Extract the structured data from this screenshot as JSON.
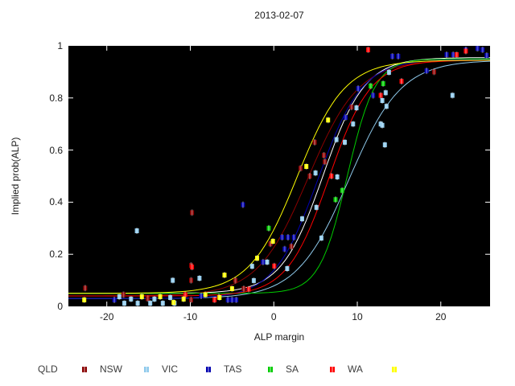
{
  "chart_data": {
    "type": "scatter",
    "title": "2013-02-07",
    "xlabel": "ALP margin",
    "ylabel": "Implied prob(ALP)",
    "xlim": [
      -24.6,
      25.9
    ],
    "ylim": [
      0,
      1
    ],
    "grid": false,
    "plot_background": "#000000",
    "tick_color": "#ffffff",
    "text_color": "#1a1a1a",
    "legend_position": "bottom",
    "x_ticks": [
      {
        "v": -20,
        "label": "-20"
      },
      {
        "v": -10,
        "label": "-10"
      },
      {
        "v": 0,
        "label": "0"
      },
      {
        "v": 10,
        "label": "10"
      },
      {
        "v": 20,
        "label": "20"
      }
    ],
    "y_ticks": [
      {
        "v": 0,
        "label": "0"
      },
      {
        "v": 0.2,
        "label": "0.2"
      },
      {
        "v": 0.4,
        "label": "0.4"
      },
      {
        "v": 0.6,
        "label": "0.6"
      },
      {
        "v": 0.8,
        "label": "0.8"
      },
      {
        "v": 1,
        "label": "1"
      }
    ],
    "overall_curve": {
      "name": "overall",
      "color": "#ffffff",
      "lo": 0.05,
      "hi": 0.955,
      "x0": 5.9,
      "k": 0.4
    },
    "series": [
      {
        "name": "QLD",
        "color": "#8b0000",
        "curve": {
          "lo": 0.04,
          "hi": 0.945,
          "x0": 4.1,
          "k": 0.33
        },
        "points": [
          [
            -22.6,
            0.07
          ],
          [
            -18,
            0.045
          ],
          [
            -15.1,
            0.03
          ],
          [
            -9.9,
            0.025
          ],
          [
            -9.9,
            0.1
          ],
          [
            -9.9,
            0.157
          ],
          [
            -9.8,
            0.36
          ],
          [
            -6.6,
            0.037
          ],
          [
            -4.6,
            0.1
          ],
          [
            -3.6,
            0.068
          ],
          [
            -0.4,
            0.24
          ],
          [
            2.1,
            0.23
          ],
          [
            3.2,
            0.53
          ],
          [
            4.3,
            0.5
          ],
          [
            4.9,
            0.63
          ],
          [
            6.0,
            0.58
          ],
          [
            6.1,
            0.555
          ],
          [
            9.3,
            0.765
          ],
          [
            19.2,
            0.9
          ]
        ]
      },
      {
        "name": "NSW",
        "color": "#8fcaec",
        "curve": {
          "lo": 0.03,
          "hi": 0.945,
          "x0": 9.0,
          "k": 0.32
        },
        "points": [
          [
            -18.5,
            0.037
          ],
          [
            -17.9,
            0.012
          ],
          [
            -17.1,
            0.028
          ],
          [
            -16.4,
            0.29
          ],
          [
            -16.3,
            0.012
          ],
          [
            -14.8,
            0.012
          ],
          [
            -14.3,
            0.028
          ],
          [
            -13.3,
            0.012
          ],
          [
            -12.4,
            0.034
          ],
          [
            -12.1,
            0.1
          ],
          [
            -11.9,
            0.012
          ],
          [
            -8.9,
            0.108
          ],
          [
            -2.6,
            0.154
          ],
          [
            -2.4,
            0.099
          ],
          [
            -0.8,
            0.17
          ],
          [
            1.6,
            0.145
          ],
          [
            3.4,
            0.336
          ],
          [
            5.0,
            0.512
          ],
          [
            5.1,
            0.38
          ],
          [
            5.7,
            0.262
          ],
          [
            7.5,
            0.64
          ],
          [
            7.6,
            0.497
          ],
          [
            8.5,
            0.63
          ],
          [
            9.5,
            0.7
          ],
          [
            9.9,
            0.762
          ],
          [
            12.8,
            0.7
          ],
          [
            13.0,
            0.695
          ],
          [
            13.0,
            0.79
          ],
          [
            13.3,
            0.62
          ],
          [
            13.4,
            0.82
          ],
          [
            13.5,
            0.768
          ],
          [
            13.8,
            0.898
          ],
          [
            21.4,
            0.81
          ]
        ]
      },
      {
        "name": "VIC",
        "color": "#0000b0",
        "curve": {
          "lo": 0.03,
          "hi": 0.948,
          "x0": 5.3,
          "k": 0.38
        },
        "points": [
          [
            -19.1,
            0.025
          ],
          [
            -8.7,
            0.04
          ],
          [
            -5.5,
            0.025
          ],
          [
            -5.0,
            0.025
          ],
          [
            -4.5,
            0.025
          ],
          [
            -3.7,
            0.39
          ],
          [
            -1.3,
            0.17
          ],
          [
            1.0,
            0.265
          ],
          [
            1.3,
            0.22
          ],
          [
            1.7,
            0.265
          ],
          [
            2.4,
            0.265
          ],
          [
            8.6,
            0.725
          ],
          [
            10.1,
            0.836
          ],
          [
            11.9,
            0.81
          ],
          [
            14.2,
            0.96
          ],
          [
            14.9,
            0.96
          ],
          [
            18.3,
            0.904
          ],
          [
            20.7,
            0.966
          ],
          [
            21.5,
            0.966
          ],
          [
            23.0,
            0.985
          ],
          [
            24.4,
            0.99
          ],
          [
            25.0,
            0.985
          ],
          [
            25.5,
            0.963
          ]
        ]
      },
      {
        "name": "TAS",
        "color": "#00cc00",
        "curve": {
          "lo": 0.05,
          "hi": 0.95,
          "x0": 8.8,
          "k": 0.6
        },
        "points": [
          [
            -0.6,
            0.3
          ],
          [
            7.4,
            0.41
          ],
          [
            8.2,
            0.445
          ],
          [
            11.6,
            0.846
          ],
          [
            13.1,
            0.855
          ]
        ]
      },
      {
        "name": "SA",
        "color": "#ff0000",
        "curve": {
          "lo": 0.04,
          "hi": 0.945,
          "x0": 6.6,
          "k": 0.4
        },
        "points": [
          [
            -10.6,
            0.045
          ],
          [
            -9.8,
            0.151
          ],
          [
            -7.1,
            0.025
          ],
          [
            -3.0,
            0.066
          ],
          [
            0.05,
            0.155
          ],
          [
            6.9,
            0.5
          ],
          [
            11.3,
            0.985
          ],
          [
            12.8,
            0.81
          ],
          [
            15.3,
            0.864
          ],
          [
            21.9,
            0.966
          ],
          [
            23.0,
            0.98
          ]
        ]
      },
      {
        "name": "WA",
        "color": "#ffff00",
        "curve": {
          "lo": 0.05,
          "hi": 0.945,
          "x0": 2.8,
          "k": 0.35
        },
        "points": [
          [
            -22.7,
            0.025
          ],
          [
            -15.8,
            0.037
          ],
          [
            -13.6,
            0.037
          ],
          [
            -12.0,
            0.015
          ],
          [
            -10.8,
            0.028
          ],
          [
            -8.2,
            0.045
          ],
          [
            -6.5,
            0.034
          ],
          [
            -5.9,
            0.12
          ],
          [
            -5.0,
            0.068
          ],
          [
            -2.0,
            0.185
          ],
          [
            -0.1,
            0.25
          ],
          [
            3.9,
            0.537
          ],
          [
            6.5,
            0.715
          ]
        ]
      }
    ]
  }
}
